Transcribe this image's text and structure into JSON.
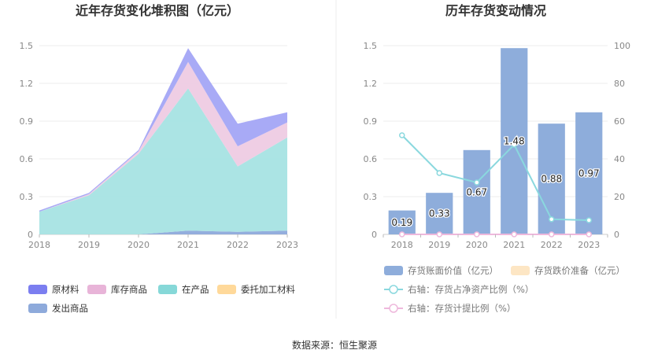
{
  "source_text": "数据来源：恒生聚源",
  "chart_data": [
    {
      "type": "area",
      "stacked": true,
      "title": "近年存货变化堆积图（亿元）",
      "x": [
        "2018",
        "2019",
        "2020",
        "2021",
        "2022",
        "2023"
      ],
      "ylim": [
        0,
        1.5
      ],
      "yticks": [
        "0",
        "0.3",
        "0.6",
        "0.9",
        "1.2",
        "1.5"
      ],
      "grid": true,
      "legend_position": "bottom",
      "series": [
        {
          "name": "发出商品",
          "color": "#8eaadb",
          "values": [
            0,
            0,
            0,
            0.03,
            0.02,
            0.03
          ]
        },
        {
          "name": "委托加工材料",
          "color": "#ffd99a",
          "values": [
            0,
            0,
            0,
            0,
            0,
            0
          ]
        },
        {
          "name": "在产品",
          "color": "#a6e3e3",
          "values": [
            0.18,
            0.31,
            0.64,
            1.13,
            0.52,
            0.74
          ]
        },
        {
          "name": "库存商品",
          "color": "#eecbe3",
          "values": [
            0,
            0.01,
            0.02,
            0.21,
            0.16,
            0.12
          ]
        },
        {
          "name": "原材料",
          "color": "#a3a5f5",
          "values": [
            0.01,
            0.01,
            0.01,
            0.11,
            0.18,
            0.08
          ]
        }
      ],
      "legend_order": [
        "原材料",
        "库存商品",
        "在产品",
        "委托加工材料",
        "发出商品"
      ],
      "legend_colors": {
        "原材料": "#7b7ef0",
        "库存商品": "#e8b4d8",
        "在产品": "#86d8d8",
        "委托加工材料": "#ffd99a",
        "发出商品": "#8eaadb"
      }
    },
    {
      "type": "bar",
      "title": "历年存货变动情况",
      "categories": [
        "2018",
        "2019",
        "2020",
        "2021",
        "2022",
        "2023"
      ],
      "ylim": [
        0,
        1.5
      ],
      "yticks": [
        "0",
        "0.3",
        "0.6",
        "0.9",
        "1.2",
        "1.5"
      ],
      "y2lim": [
        0,
        100
      ],
      "y2ticks": [
        "0",
        "20",
        "40",
        "60",
        "80",
        "100"
      ],
      "grid": true,
      "legend_position": "bottom",
      "series": [
        {
          "name": "存货账面价值（亿元）",
          "type": "bar",
          "color": "#8eaddb",
          "axis": "left",
          "values": [
            0.19,
            0.33,
            0.67,
            1.48,
            0.88,
            0.97
          ],
          "labels": [
            "0.19",
            "0.33",
            "0.67",
            "1.48",
            "0.88",
            "0.97"
          ]
        },
        {
          "name": "存货跌价准备（亿元）",
          "type": "bar",
          "color": "#fde6c4",
          "axis": "left",
          "values": [
            0,
            0,
            0,
            0,
            0,
            0
          ]
        },
        {
          "name": "右轴：存货占净资产比例（%）",
          "type": "line",
          "color": "#8ad8de",
          "axis": "right",
          "values": [
            52.5,
            32.5,
            27.5,
            47.5,
            8,
            7.5
          ]
        },
        {
          "name": "右轴：存货计提比例（%）",
          "type": "line",
          "color": "#eeb8dc",
          "axis": "right",
          "values": [
            0,
            0,
            0,
            0,
            0,
            0
          ]
        }
      ]
    }
  ]
}
